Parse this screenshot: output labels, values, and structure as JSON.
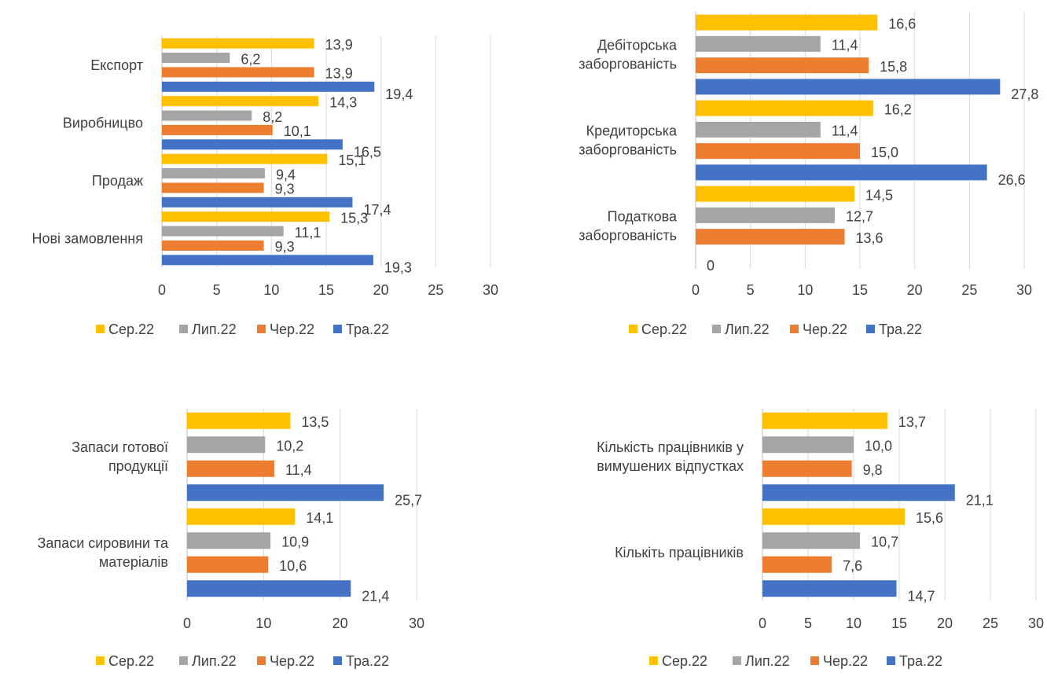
{
  "legend": [
    "Сер.22",
    "Лип.22",
    "Чер.22",
    "Тра.22"
  ],
  "colors": [
    "#FFC000",
    "#A5A5A5",
    "#ED7D31",
    "#4472C4"
  ],
  "chart_data": [
    {
      "type": "bar",
      "orientation": "horizontal",
      "categories": [
        "Експорт",
        "Виробницво",
        "Продаж",
        "Нові замовлення"
      ],
      "xlim": [
        0,
        30
      ],
      "xticks": [
        "0",
        "5",
        "10",
        "15",
        "20",
        "25",
        "30"
      ],
      "legend_position": "bottom",
      "series": [
        {
          "name": "Сер.22",
          "values": [
            13.9,
            14.3,
            15.1,
            15.3
          ],
          "labels": [
            "13,9",
            "14,3",
            "15,1",
            "15,3"
          ]
        },
        {
          "name": "Лип.22",
          "values": [
            6.2,
            8.2,
            9.4,
            11.1
          ],
          "labels": [
            "6,2",
            "8,2",
            "9,4",
            "11,1"
          ]
        },
        {
          "name": "Чер.22",
          "values": [
            13.9,
            10.1,
            9.3,
            9.3
          ],
          "labels": [
            "13,9",
            "10,1",
            "9,3",
            "9,3"
          ]
        },
        {
          "name": "Тра.22",
          "values": [
            19.4,
            16.5,
            17.4,
            19.3
          ],
          "labels": [
            "19,4",
            "16,5",
            "17,4",
            "19,3"
          ]
        }
      ]
    },
    {
      "type": "bar",
      "orientation": "horizontal",
      "categories": [
        [
          "Дебіторська",
          "заборгованість"
        ],
        [
          "Кредиторська",
          "заборгованість"
        ],
        [
          "Податкова",
          "заборгованість"
        ]
      ],
      "xlim": [
        0,
        30
      ],
      "xticks": [
        "0",
        "5",
        "10",
        "15",
        "20",
        "25",
        "30"
      ],
      "legend_position": "bottom",
      "series": [
        {
          "name": "Сер.22",
          "values": [
            16.6,
            16.2,
            14.5
          ],
          "labels": [
            "16,6",
            "16,2",
            "14,5"
          ]
        },
        {
          "name": "Лип.22",
          "values": [
            11.4,
            11.4,
            12.7
          ],
          "labels": [
            "11,4",
            "11,4",
            "12,7"
          ]
        },
        {
          "name": "Чер.22",
          "values": [
            15.8,
            15.0,
            13.6
          ],
          "labels": [
            "15,8",
            "15,0",
            "13,6"
          ]
        },
        {
          "name": "Тра.22",
          "values": [
            27.8,
            26.6,
            0
          ],
          "labels": [
            "27,8",
            "26,6",
            "0"
          ]
        }
      ]
    },
    {
      "type": "bar",
      "orientation": "horizontal",
      "categories": [
        [
          "Запаси готової",
          "продукції"
        ],
        [
          "Запаси сировини та",
          "матеріалів"
        ]
      ],
      "xlim": [
        0,
        30
      ],
      "xticks": [
        "0",
        "10",
        "20",
        "30"
      ],
      "legend_position": "bottom",
      "series": [
        {
          "name": "Сер.22",
          "values": [
            13.5,
            14.1
          ],
          "labels": [
            "13,5",
            "14,1"
          ]
        },
        {
          "name": "Лип.22",
          "values": [
            10.2,
            10.9
          ],
          "labels": [
            "10,2",
            "10,9"
          ]
        },
        {
          "name": "Чер.22",
          "values": [
            11.4,
            10.6
          ],
          "labels": [
            "11,4",
            "10,6"
          ]
        },
        {
          "name": "Тра.22",
          "values": [
            25.7,
            21.4
          ],
          "labels": [
            "25,7",
            "21,4"
          ]
        }
      ]
    },
    {
      "type": "bar",
      "orientation": "horizontal",
      "categories": [
        [
          "Кількість працівників у",
          "вимушених відпустках"
        ],
        [
          "Кількіть працівників"
        ]
      ],
      "xlim": [
        0,
        30
      ],
      "xticks": [
        "0",
        "5",
        "10",
        "15",
        "20",
        "25",
        "30"
      ],
      "legend_position": "bottom",
      "series": [
        {
          "name": "Сер.22",
          "values": [
            13.7,
            15.6
          ],
          "labels": [
            "13,7",
            "15,6"
          ]
        },
        {
          "name": "Лип.22",
          "values": [
            10.0,
            10.7
          ],
          "labels": [
            "10,0",
            "10,7"
          ]
        },
        {
          "name": "Чер.22",
          "values": [
            9.8,
            7.6
          ],
          "labels": [
            "9,8",
            "7,6"
          ]
        },
        {
          "name": "Тра.22",
          "values": [
            21.1,
            14.7
          ],
          "labels": [
            "21,1",
            "14,7"
          ]
        }
      ]
    }
  ]
}
